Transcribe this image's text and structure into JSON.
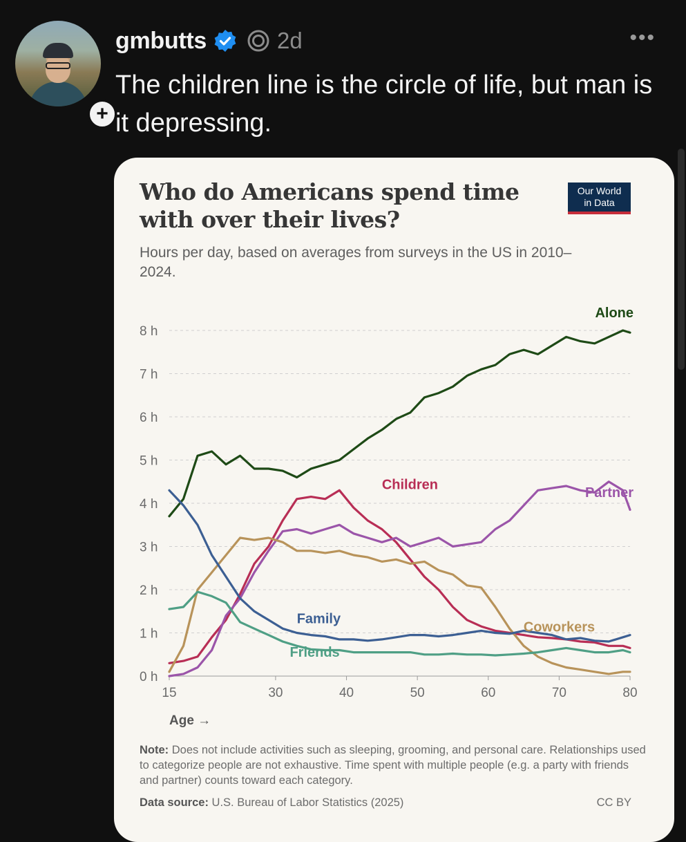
{
  "post": {
    "username": "gmbutts",
    "time": "2d",
    "more": "•••",
    "follow": "+",
    "caption": "The children line is the circle of life, but man is it depressing."
  },
  "chart": {
    "title": "Who do Americans spend time with over their lives?",
    "subtitle": "Hours per day, based on averages from surveys in the US in 2010–2024.",
    "logo_line1": "Our World",
    "logo_line2": "in Data",
    "xlabel": "Age →",
    "note_label": "Note:",
    "note_text": " Does not include activities such as sleeping, grooming, and personal care. Relationships used to categorize people are not exhaustive. Time spent with multiple people (e.g. a party with friends and partner) counts toward each category.",
    "source_label": "Data source:",
    "source_text": " U.S. Bureau of Labor Statistics (2025)",
    "license": "CC BY"
  },
  "chart_data": {
    "type": "line",
    "title": "Who do Americans spend time with over their lives?",
    "subtitle": "Hours per day, based on averages from surveys in the US in 2010–2024.",
    "xlabel": "Age →",
    "ylabel": "",
    "xlim": [
      15,
      80
    ],
    "ylim": [
      0,
      8
    ],
    "x_ticks": [
      15,
      30,
      40,
      50,
      60,
      70,
      80
    ],
    "y_ticks": [
      0,
      1,
      2,
      3,
      4,
      5,
      6,
      7,
      8
    ],
    "y_tick_labels": [
      "0 h",
      "1 h",
      "2 h",
      "3 h",
      "4 h",
      "5 h",
      "6 h",
      "7 h",
      "8 h"
    ],
    "grid": true,
    "legend": "inline labels",
    "x": [
      15,
      17,
      19,
      21,
      23,
      25,
      27,
      29,
      31,
      33,
      35,
      37,
      39,
      41,
      43,
      45,
      47,
      49,
      51,
      53,
      55,
      57,
      59,
      61,
      63,
      65,
      67,
      69,
      71,
      73,
      75,
      77,
      79,
      80
    ],
    "series": [
      {
        "name": "Alone",
        "color": "#1e4a16",
        "values": [
          3.7,
          4.1,
          5.1,
          5.2,
          4.9,
          5.1,
          4.8,
          4.8,
          4.75,
          4.6,
          4.8,
          4.9,
          5.0,
          5.25,
          5.5,
          5.7,
          5.95,
          6.1,
          6.45,
          6.55,
          6.7,
          6.95,
          7.1,
          7.2,
          7.45,
          7.55,
          7.45,
          7.65,
          7.85,
          7.75,
          7.7,
          7.85,
          8.0,
          7.95
        ]
      },
      {
        "name": "Children",
        "color": "#b82e55",
        "values": [
          0.3,
          0.35,
          0.45,
          0.9,
          1.3,
          1.9,
          2.6,
          3.0,
          3.6,
          4.1,
          4.15,
          4.1,
          4.3,
          3.9,
          3.6,
          3.4,
          3.1,
          2.7,
          2.3,
          2.0,
          1.6,
          1.3,
          1.15,
          1.05,
          1.0,
          0.95,
          0.9,
          0.88,
          0.85,
          0.8,
          0.78,
          0.7,
          0.7,
          0.65
        ]
      },
      {
        "name": "Partner",
        "color": "#9b55a9",
        "values": [
          0.0,
          0.05,
          0.2,
          0.6,
          1.4,
          1.8,
          2.4,
          2.9,
          3.35,
          3.4,
          3.3,
          3.4,
          3.5,
          3.3,
          3.2,
          3.1,
          3.2,
          3.0,
          3.1,
          3.2,
          3.0,
          3.05,
          3.1,
          3.4,
          3.6,
          3.95,
          4.3,
          4.35,
          4.4,
          4.3,
          4.25,
          4.5,
          4.3,
          3.85
        ]
      },
      {
        "name": "Coworkers",
        "color": "#b8935a",
        "values": [
          0.1,
          0.7,
          2.0,
          2.4,
          2.8,
          3.2,
          3.15,
          3.2,
          3.1,
          2.9,
          2.9,
          2.85,
          2.9,
          2.8,
          2.75,
          2.65,
          2.7,
          2.6,
          2.65,
          2.45,
          2.35,
          2.1,
          2.05,
          1.6,
          1.1,
          0.7,
          0.45,
          0.3,
          0.2,
          0.15,
          0.1,
          0.05,
          0.1,
          0.1
        ]
      },
      {
        "name": "Family",
        "color": "#3c5f93",
        "values": [
          4.3,
          3.95,
          3.5,
          2.8,
          2.3,
          1.8,
          1.5,
          1.3,
          1.1,
          1.0,
          0.95,
          0.92,
          0.85,
          0.85,
          0.82,
          0.85,
          0.9,
          0.95,
          0.95,
          0.92,
          0.95,
          1.0,
          1.05,
          1.0,
          0.98,
          1.05,
          1.0,
          0.95,
          0.85,
          0.88,
          0.82,
          0.8,
          0.9,
          0.95
        ]
      },
      {
        "name": "Friends",
        "color": "#4f9f85",
        "values": [
          1.55,
          1.6,
          1.95,
          1.85,
          1.7,
          1.25,
          1.1,
          0.95,
          0.8,
          0.7,
          0.62,
          0.6,
          0.6,
          0.55,
          0.55,
          0.55,
          0.55,
          0.55,
          0.5,
          0.5,
          0.52,
          0.5,
          0.5,
          0.48,
          0.5,
          0.52,
          0.55,
          0.6,
          0.65,
          0.6,
          0.55,
          0.55,
          0.6,
          0.55
        ]
      }
    ],
    "series_label_anchors": {
      "Alone": 75,
      "Children": 45,
      "Partner": 77,
      "Coworkers": 64,
      "Family": 33,
      "Friends": 32
    },
    "annotations": [
      "Alone",
      "Children",
      "Partner",
      "Coworkers",
      "Family",
      "Friends"
    ],
    "source": "U.S. Bureau of Labor Statistics (2025)",
    "license": "CC BY"
  }
}
